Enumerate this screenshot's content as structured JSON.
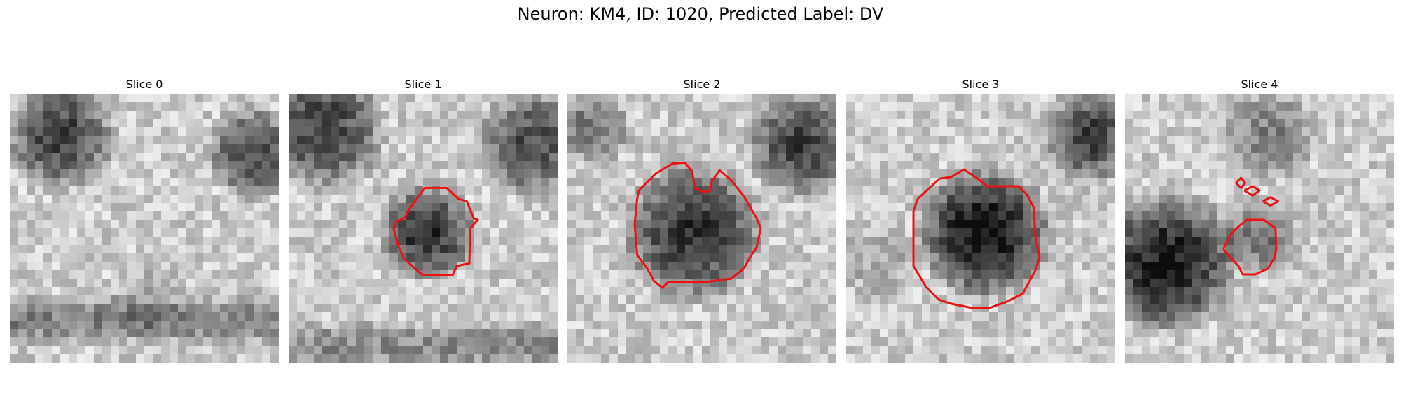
{
  "figure": {
    "title": "Neuron: KM4, ID: 1020, Predicted Label: DV"
  },
  "slices": [
    {
      "title": "Slice 0"
    },
    {
      "title": "Slice 1"
    },
    {
      "title": "Slice 2"
    },
    {
      "title": "Slice 3"
    },
    {
      "title": "Slice 4"
    }
  ],
  "colors": {
    "contour": "#ee1111"
  }
}
